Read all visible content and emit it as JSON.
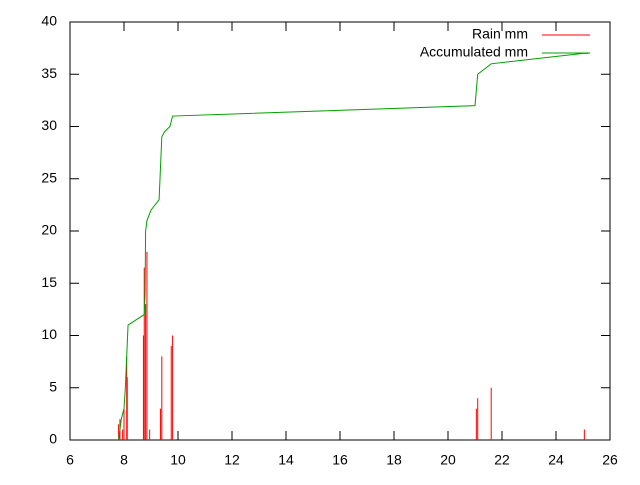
{
  "chart_data": {
    "type": "line",
    "xlim": [
      6,
      26
    ],
    "xticks": [
      6,
      8,
      10,
      12,
      14,
      16,
      18,
      20,
      22,
      24,
      26
    ],
    "ylim": [
      0,
      40
    ],
    "yticks": [
      0,
      5,
      10,
      15,
      20,
      25,
      30,
      35,
      40
    ],
    "legend": "top-right",
    "series": [
      {
        "name": "Rain mm",
        "color": "#ff0000",
        "style": "impulses",
        "x": [
          7.8,
          7.85,
          7.95,
          8.0,
          8.1,
          8.12,
          8.72,
          8.75,
          8.8,
          8.85,
          8.95,
          9.35,
          9.4,
          9.75,
          9.8,
          21.05,
          21.1,
          21.6,
          25.05
        ],
        "values": [
          1.5,
          2,
          1,
          3,
          8,
          6,
          10,
          16.5,
          13,
          18,
          1,
          3,
          8,
          9,
          10,
          3,
          4,
          5,
          1
        ]
      },
      {
        "name": "Accumulated mm",
        "color": "#00a000",
        "style": "lines",
        "x": [
          7.8,
          7.9,
          8.0,
          8.05,
          8.1,
          8.15,
          8.75,
          8.78,
          8.8,
          8.85,
          9.0,
          9.3,
          9.35,
          9.4,
          9.5,
          9.7,
          9.8,
          21.0,
          21.1,
          21.6,
          25.0,
          25.2
        ],
        "values": [
          0,
          2,
          3,
          5,
          8,
          11,
          12,
          14,
          20,
          21,
          22,
          23,
          26,
          29,
          29.5,
          30,
          31,
          32,
          35,
          36,
          37,
          37
        ]
      }
    ]
  }
}
